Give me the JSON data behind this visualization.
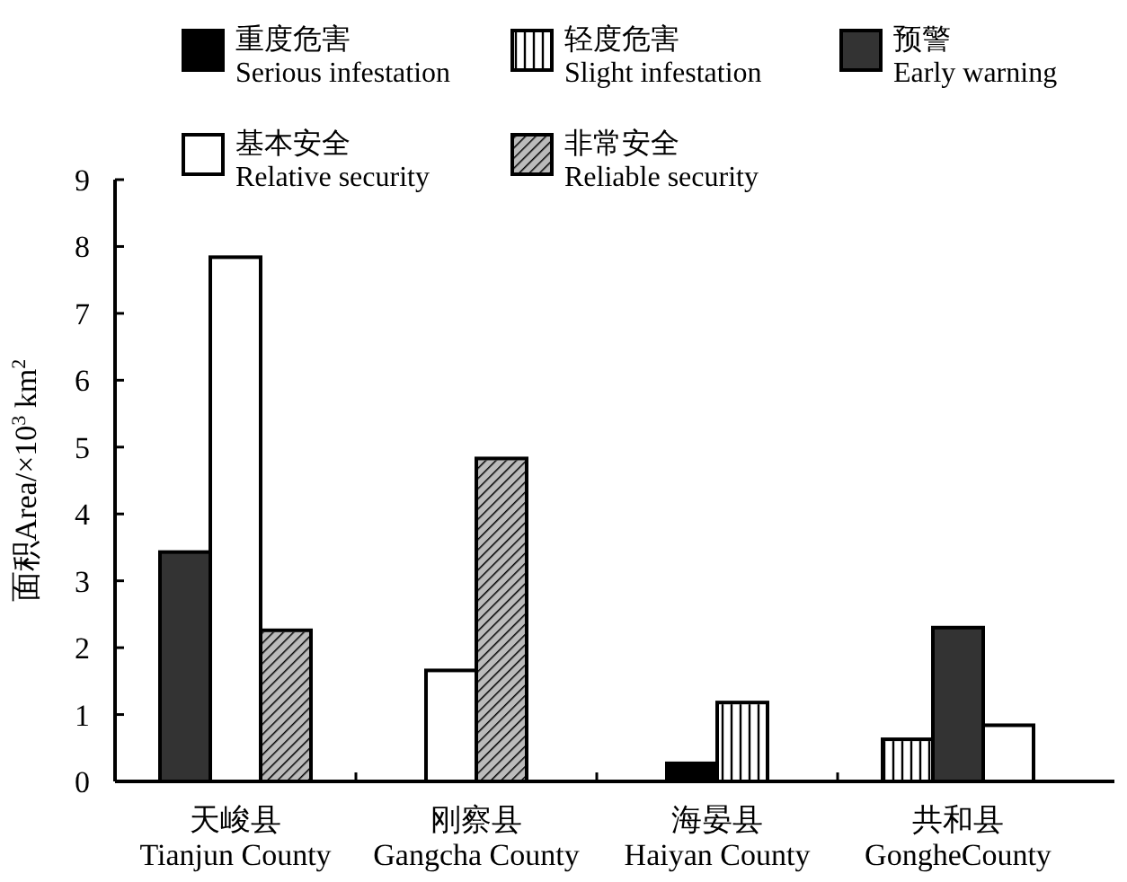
{
  "chart_data": {
    "type": "bar",
    "ylabel": "面积Area/×10$^{3}$ km$^{2}$",
    "categories": [
      "天峻县\nTianjun County",
      "刚察县\nGangcha County",
      "海晏县\nHaiyan County",
      "共和县\nGongheCounty"
    ],
    "series": [
      {
        "name": "重度危害\nSerious infestation",
        "color": "#000000",
        "values": [
          null,
          null,
          0.27,
          null
        ]
      },
      {
        "name": "轻度危害\nSlight infestation",
        "color": "#ffffff",
        "values": [
          null,
          null,
          1.18,
          0.63
        ]
      },
      {
        "name": "预警\nEarly warning",
        "color": "#333333",
        "values": [
          3.43,
          null,
          null,
          2.3
        ]
      },
      {
        "name": "基本安全\nRelative security",
        "color": "#ffffff",
        "values": [
          7.84,
          1.66,
          null,
          0.84
        ]
      },
      {
        "name": "非常安全\nReliable security",
        "color": "#bbbbbb",
        "values": [
          2.26,
          4.83,
          null,
          null
        ]
      }
    ],
    "ylim": [
      0,
      9
    ],
    "yticks": [
      0,
      1,
      2,
      3,
      4,
      5,
      6,
      7,
      8,
      9
    ],
    "grid": false,
    "legend": "top"
  }
}
